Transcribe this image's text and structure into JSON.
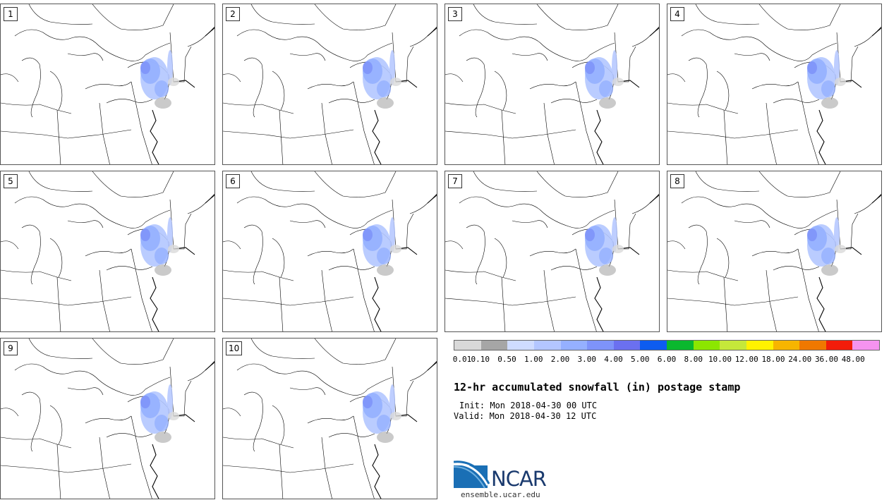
{
  "panels": [
    {
      "label": "1"
    },
    {
      "label": "2"
    },
    {
      "label": "3"
    },
    {
      "label": "4"
    },
    {
      "label": "5"
    },
    {
      "label": "6"
    },
    {
      "label": "7"
    },
    {
      "label": "8"
    },
    {
      "label": "9"
    },
    {
      "label": "10"
    }
  ],
  "colorbar": {
    "colors": [
      "#d9d9d9",
      "#a6a6a6",
      "#cfdcff",
      "#b3c6ff",
      "#95b0ff",
      "#7e93fa",
      "#6b70f0",
      "#0d5cf0",
      "#0ab82e",
      "#8ce600",
      "#c5e83a",
      "#fff200",
      "#f7b500",
      "#f07800",
      "#f21c0a",
      "#f593f0"
    ],
    "ticks": [
      "0.01",
      "0.10",
      "0.50",
      "1.00",
      "2.00",
      "3.00",
      "4.00",
      "5.00",
      "6.00",
      "8.00",
      "10.00",
      "12.00",
      "18.00",
      "24.00",
      "36.00",
      "48.00"
    ]
  },
  "title": "12-hr accumulated snowfall (in) postage stamp",
  "init": "Init: Mon 2018-04-30 00 UTC",
  "valid": "Valid: Mon 2018-04-30 12 UTC",
  "logo": "NCAR",
  "site": "ensemble.ucar.edu"
}
